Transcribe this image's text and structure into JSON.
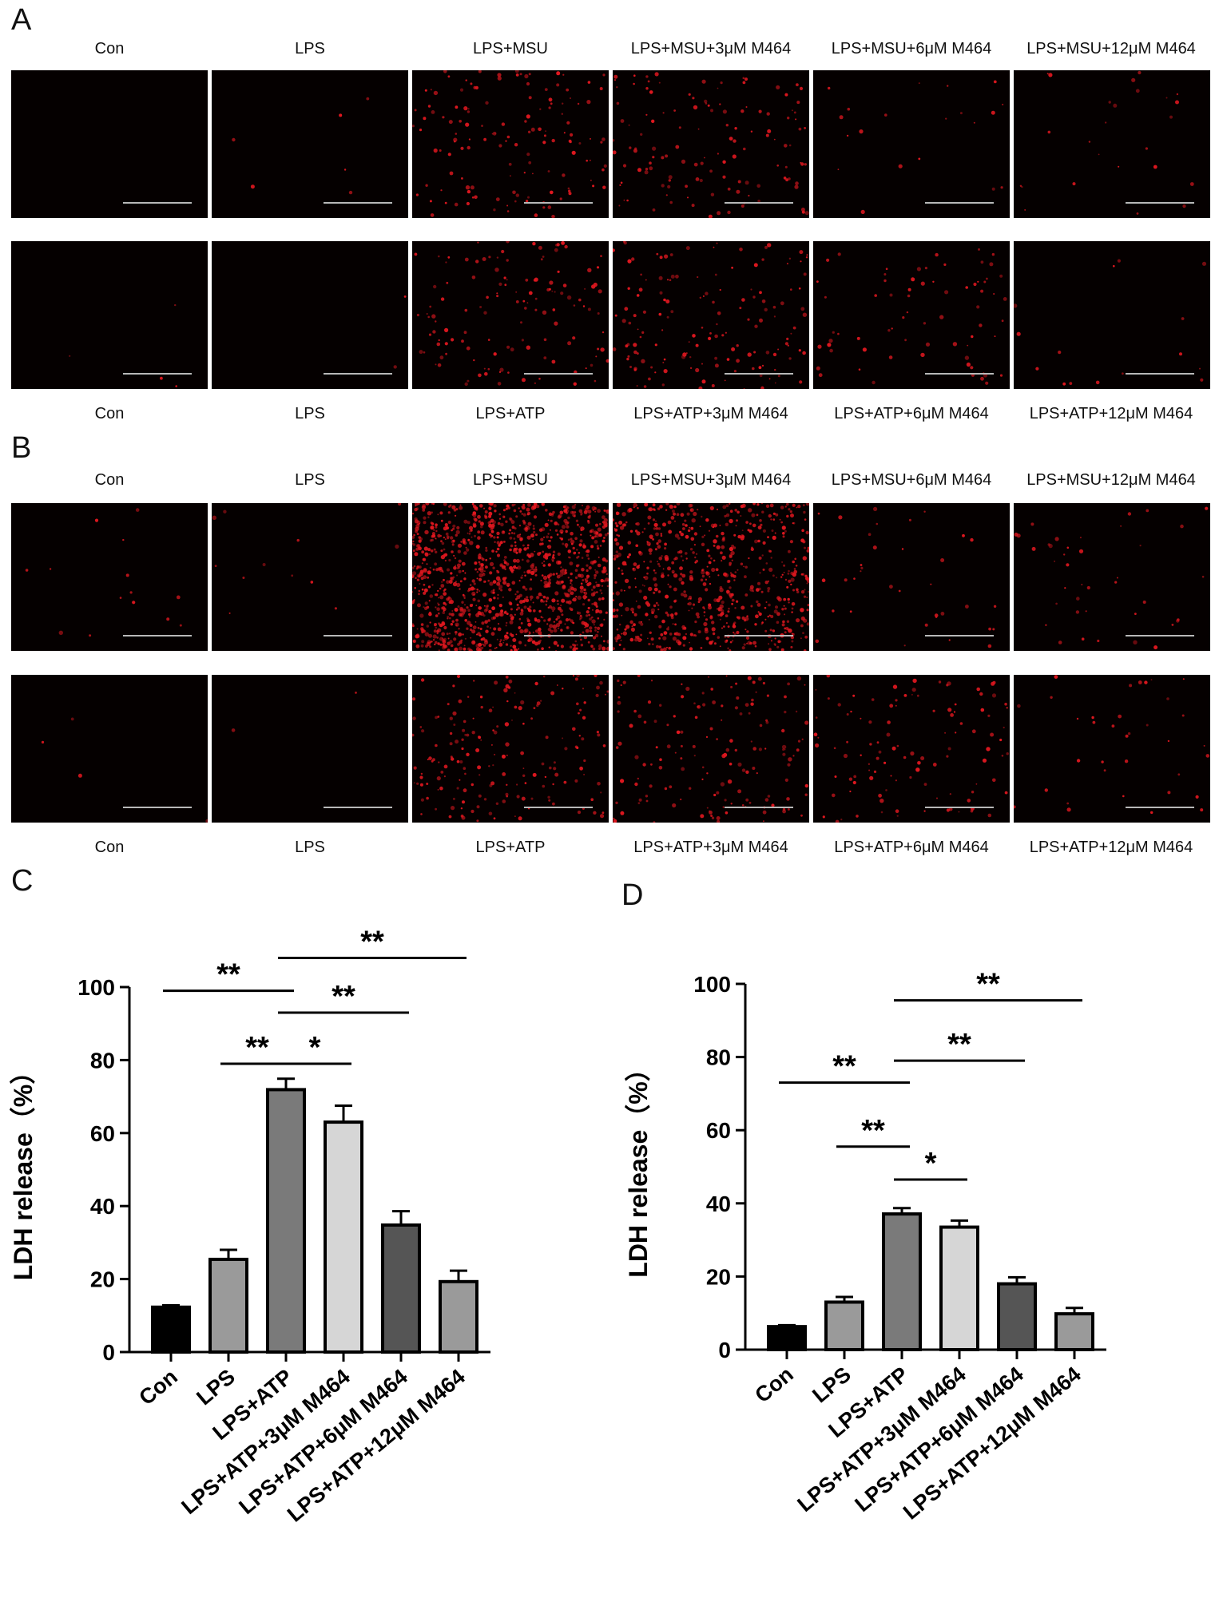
{
  "panels": {
    "A": "A",
    "B": "B",
    "C": "C",
    "D": "D"
  },
  "micro_labels": {
    "msu": [
      "Con",
      "LPS",
      "LPS+MSU",
      "LPS+MSU+3μM M464",
      "LPS+MSU+6μM M464",
      "LPS+MSU+12μM M464"
    ],
    "atp": [
      "Con",
      "LPS",
      "LPS+ATP",
      "LPS+ATP+3μM M464",
      "LPS+ATP+6μM M464",
      "LPS+ATP+12μM M464"
    ]
  },
  "micro_density": {
    "A_top": [
      0,
      6,
      140,
      130,
      20,
      25
    ],
    "A_bottom": [
      4,
      2,
      130,
      150,
      70,
      15
    ],
    "B_top": [
      14,
      12,
      1200,
      700,
      35,
      40
    ],
    "B_bottom": [
      4,
      2,
      190,
      160,
      110,
      35
    ]
  },
  "colors": {
    "cell": "#e0171f",
    "bars": [
      "#000000",
      "#9a9a9a",
      "#7a7a7a",
      "#d6d6d6",
      "#555555",
      "#9a9a9a"
    ]
  },
  "chart_data": [
    {
      "type": "bar",
      "panel": "C",
      "categories": [
        "Con",
        "LPS",
        "LPS+ATP",
        "LPS+ATP+3μM M464",
        "LPS+ATP+6μM M464",
        "LPS+ATP+12μM M464"
      ],
      "values": [
        12.3,
        25.4,
        71.9,
        63.0,
        34.8,
        19.3
      ],
      "errors": [
        0.5,
        2.6,
        3.0,
        4.5,
        3.8,
        3.0
      ],
      "ylabel": "LDH release（%）",
      "ylim": [
        0,
        100
      ],
      "yticks": [
        0,
        20,
        40,
        60,
        80,
        100
      ],
      "significance": [
        {
          "from": 0,
          "to": 2,
          "y": 99,
          "label": "**"
        },
        {
          "from": 1,
          "to": 2,
          "y": 79,
          "label": "**"
        },
        {
          "from": 2,
          "to": 5,
          "y": 108,
          "label": "**"
        },
        {
          "from": 2,
          "to": 4,
          "y": 93,
          "label": "**"
        },
        {
          "from": 2,
          "to": 3,
          "y": 79,
          "label": "*"
        }
      ]
    },
    {
      "type": "bar",
      "panel": "D",
      "categories": [
        "Con",
        "LPS",
        "LPS+ATP",
        "LPS+ATP+3μM M464",
        "LPS+ATP+6μM M464",
        "LPS+ATP+12μM M464"
      ],
      "values": [
        6.3,
        13.0,
        37.1,
        33.5,
        18.0,
        9.8
      ],
      "errors": [
        0.4,
        1.4,
        1.6,
        1.8,
        1.8,
        1.6
      ],
      "ylabel": "LDH release（%）",
      "ylim": [
        0,
        100
      ],
      "yticks": [
        0,
        20,
        40,
        60,
        80,
        100
      ],
      "significance": [
        {
          "from": 2,
          "to": 5,
          "y": 95.5,
          "label": "**"
        },
        {
          "from": 2,
          "to": 4,
          "y": 79,
          "label": "**"
        },
        {
          "from": 0,
          "to": 2,
          "y": 73,
          "label": "**"
        },
        {
          "from": 1,
          "to": 2,
          "y": 55.5,
          "label": "**"
        },
        {
          "from": 2,
          "to": 3,
          "y": 46.5,
          "label": "*"
        }
      ]
    }
  ]
}
